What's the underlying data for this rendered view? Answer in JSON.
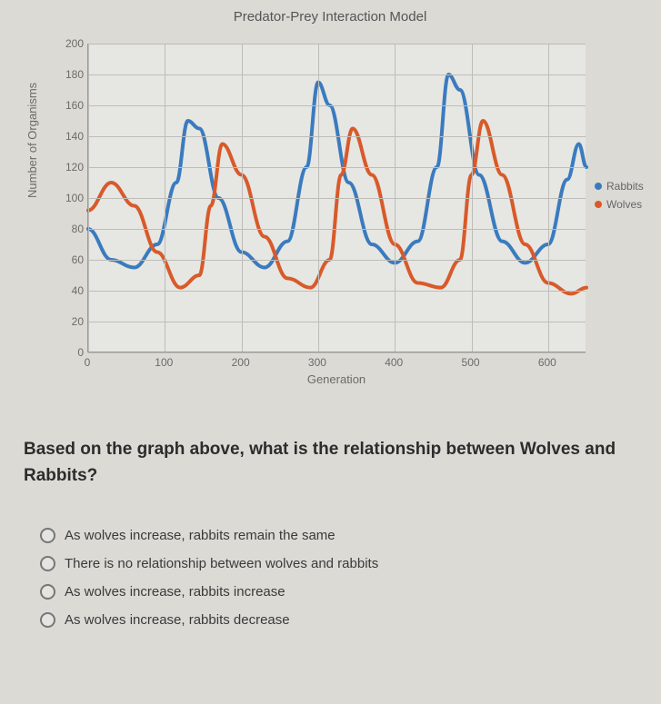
{
  "chart": {
    "type": "line",
    "title": "Predator-Prey Interaction Model",
    "xlabel": "Generation",
    "ylabel": "Number of Organisms",
    "xlim": [
      0,
      650
    ],
    "ylim": [
      0,
      200
    ],
    "xticks": [
      0,
      100,
      200,
      300,
      400,
      500,
      600
    ],
    "yticks": [
      0,
      20,
      40,
      60,
      80,
      100,
      120,
      140,
      160,
      180,
      200
    ],
    "background_color": "#e6e6e2",
    "grid_color": "#bdbcb8",
    "axis_color": "#999999",
    "tick_fontsize": 12,
    "label_fontsize": 13,
    "title_fontsize": 15,
    "line_width": 4,
    "series": [
      {
        "name": "Rabbits",
        "color": "#3a7bbf",
        "x": [
          0,
          30,
          60,
          90,
          115,
          130,
          145,
          170,
          200,
          230,
          260,
          285,
          300,
          315,
          340,
          370,
          400,
          430,
          455,
          470,
          485,
          510,
          540,
          570,
          600,
          625,
          640,
          650
        ],
        "y": [
          80,
          60,
          55,
          70,
          110,
          150,
          145,
          100,
          65,
          55,
          72,
          120,
          175,
          160,
          110,
          70,
          58,
          72,
          120,
          180,
          170,
          115,
          72,
          58,
          70,
          112,
          135,
          120
        ]
      },
      {
        "name": "Wolves",
        "color": "#d85a2a",
        "x": [
          0,
          30,
          60,
          90,
          120,
          145,
          160,
          175,
          200,
          230,
          260,
          290,
          315,
          330,
          345,
          370,
          400,
          430,
          460,
          485,
          500,
          515,
          540,
          570,
          600,
          630,
          650
        ],
        "y": [
          92,
          110,
          95,
          65,
          42,
          50,
          95,
          135,
          115,
          75,
          48,
          42,
          60,
          115,
          145,
          115,
          70,
          45,
          42,
          60,
          115,
          150,
          115,
          70,
          45,
          38,
          42
        ]
      }
    ]
  },
  "question": "Based on the graph above, what is the relationship between Wolves and Rabbits?",
  "options": [
    "As wolves increase, rabbits remain the same",
    "There is no relationship between wolves and rabbits",
    "As wolves increase, rabbits increase",
    "As wolves increase, rabbits decrease"
  ],
  "legend_labels": {
    "rabbits": "Rabbits",
    "wolves": "Wolves"
  }
}
